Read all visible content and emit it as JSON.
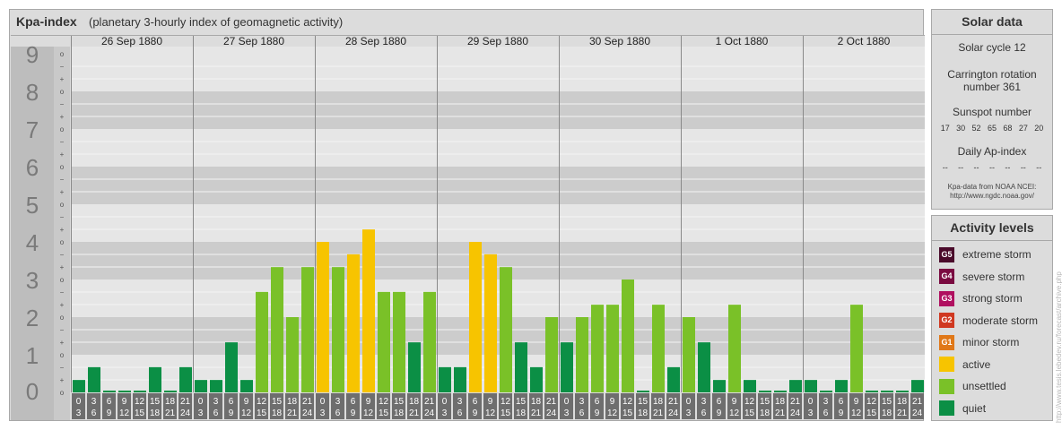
{
  "title": "Kpa-index",
  "subtitle": "(planetary 3-hourly index of geomagnetic activity)",
  "chart_data": {
    "type": "bar",
    "ylim": [
      0,
      9
    ],
    "y_ticks": [
      "0",
      "1",
      "2",
      "3",
      "4",
      "5",
      "6",
      "7",
      "8",
      "9"
    ],
    "minor_marks": [
      "+",
      "o",
      "−"
    ],
    "days": [
      "26 Sep 1880",
      "27 Sep 1880",
      "28 Sep 1880",
      "29 Sep 1880",
      "30 Sep 1880",
      "1 Oct 1880",
      "2 Oct 1880"
    ],
    "interval_start": [
      "0",
      "3",
      "6",
      "9",
      "12",
      "15",
      "18",
      "21"
    ],
    "interval_end": [
      "3",
      "6",
      "9",
      "12",
      "15",
      "18",
      "21",
      "24"
    ],
    "values": [
      [
        0.33,
        0.67,
        0,
        0,
        0,
        0.67,
        0,
        0.67
      ],
      [
        0.33,
        0.33,
        1.33,
        0.33,
        2.67,
        3.33,
        2,
        3.33
      ],
      [
        4,
        3.33,
        3.67,
        4.33,
        2.67,
        2.67,
        1.33,
        2.67
      ],
      [
        0.67,
        0.67,
        4,
        3.67,
        3.33,
        1.33,
        0.67,
        2
      ],
      [
        1.33,
        2,
        2.33,
        2.33,
        3,
        0,
        2.33,
        0.67
      ],
      [
        2,
        1.33,
        0.33,
        2.33,
        0.33,
        0,
        0,
        0.33
      ],
      [
        0.33,
        0,
        0.33,
        2.33,
        0,
        0,
        0,
        0.33
      ]
    ]
  },
  "solar_data": {
    "title": "Solar data",
    "cycle": "Solar cycle 12",
    "carrington_line1": "Carrington rotation",
    "carrington_line2": "number 361",
    "sunspot_label": "Sunspot number",
    "sunspot_values": [
      "17",
      "30",
      "52",
      "65",
      "68",
      "27",
      "20"
    ],
    "ap_label": "Daily Ap-index",
    "ap_values": [
      "--",
      "--",
      "--",
      "--",
      "--",
      "--",
      "--"
    ],
    "credit_line1": "Kpa-data from NOAA NCEI:",
    "credit_line2": "http://www.ngdc.noaa.gov/"
  },
  "activity_levels": {
    "title": "Activity levels",
    "items": [
      {
        "badge": "G5",
        "label": "extreme storm",
        "color": "#4a0a2a"
      },
      {
        "badge": "G4",
        "label": "severe storm",
        "color": "#7a0a40"
      },
      {
        "badge": "G3",
        "label": "strong storm",
        "color": "#b01060"
      },
      {
        "badge": "G2",
        "label": "moderate storm",
        "color": "#d03820"
      },
      {
        "badge": "G1",
        "label": "minor storm",
        "color": "#e07818"
      },
      {
        "badge": "",
        "label": "active",
        "color": "#f7c400"
      },
      {
        "badge": "",
        "label": "unsettled",
        "color": "#7ac128"
      },
      {
        "badge": "",
        "label": "quiet",
        "color": "#0b8f45"
      }
    ]
  },
  "watermark": "http://www.tesis.lebedev.ru/forecast/archive.php"
}
